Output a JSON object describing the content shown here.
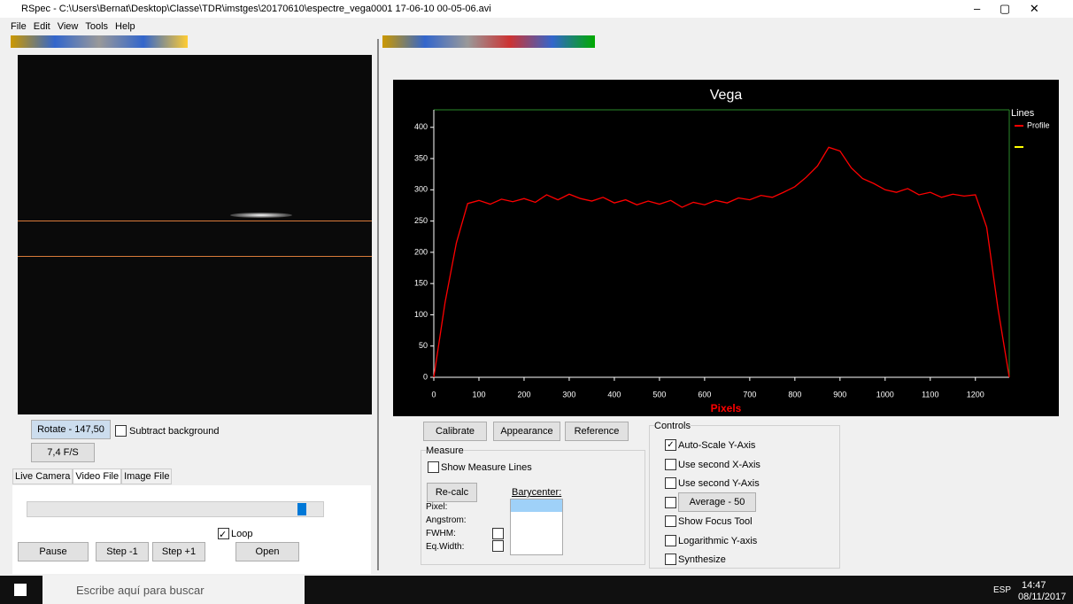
{
  "window": {
    "title": "RSpec - C:\\Users\\Bernat\\Desktop\\Classe\\TDR\\imstges\\20170610\\espectre_vega0001 17-06-10 00-05-06.avi",
    "menu": [
      "File",
      "Edit",
      "View",
      "Tools",
      "Help"
    ]
  },
  "left_panel": {
    "rotate": "Rotate - 147,50",
    "subtract": "Subtract background",
    "fps": "7,4 F/S",
    "tabs": [
      "Live Camera",
      "Video File",
      "Image File"
    ],
    "loop": "Loop",
    "buttons": [
      "Pause",
      "Step -1",
      "Step +1",
      "Open"
    ]
  },
  "right_panel": {
    "buttons": [
      "Calibrate",
      "Appearance",
      "Reference"
    ],
    "measure": {
      "title": "Measure",
      "show_lines": "Show Measure Lines",
      "recalc": "Re-calc",
      "barycenter": "Barycenter:",
      "fields": [
        "Pixel:",
        "Angstrom:",
        "FWHM:",
        "Eq.Width:"
      ]
    },
    "controls": {
      "title": "Controls",
      "items": [
        {
          "label": "Auto-Scale Y-Axis",
          "checked": true
        },
        {
          "label": "Use second X-Axis",
          "checked": false
        },
        {
          "label": "Use second Y-Axis",
          "checked": false
        },
        {
          "label": "Average - 50",
          "checked": false
        },
        {
          "label": "Show Focus Tool",
          "checked": false
        },
        {
          "label": "Logarithmic Y-axis",
          "checked": false
        },
        {
          "label": "Synthesize",
          "checked": false
        }
      ]
    }
  },
  "chart_data": {
    "type": "line",
    "title": "Vega",
    "x_label": "Pixels",
    "legend_title": "Lines",
    "x": [
      0,
      25,
      50,
      75,
      100,
      125,
      150,
      175,
      200,
      225,
      250,
      275,
      300,
      325,
      350,
      375,
      400,
      425,
      450,
      475,
      500,
      525,
      550,
      575,
      600,
      625,
      650,
      675,
      700,
      725,
      750,
      775,
      800,
      825,
      850,
      875,
      900,
      925,
      950,
      975,
      1000,
      1025,
      1050,
      1075,
      1100,
      1125,
      1150,
      1175,
      1200,
      1225,
      1250,
      1275
    ],
    "series": [
      {
        "name": "Profile",
        "color": "#ff0000",
        "values": [
          0,
          120,
          215,
          278,
          283,
          277,
          285,
          281,
          286,
          280,
          292,
          284,
          293,
          286,
          282,
          288,
          279,
          284,
          276,
          282,
          277,
          283,
          272,
          280,
          276,
          283,
          279,
          287,
          284,
          291,
          288,
          296,
          305,
          320,
          338,
          368,
          362,
          335,
          318,
          310,
          300,
          296,
          302,
          292,
          296,
          288,
          293,
          290,
          292,
          240,
          110,
          0
        ]
      }
    ],
    "xlim": [
      0,
      1275
    ],
    "ylim": [
      0,
      428
    ],
    "xticks": [
      0,
      100,
      200,
      300,
      400,
      500,
      600,
      700,
      800,
      900,
      1000,
      1100,
      1200
    ],
    "yticks": [
      0,
      50,
      100,
      150,
      200,
      250,
      300,
      350,
      400
    ],
    "grid": false
  },
  "taskbar": {
    "search": "Escribe aquí para buscar",
    "lang": "ESP",
    "time": "14:47",
    "date": "08/11/2017"
  }
}
